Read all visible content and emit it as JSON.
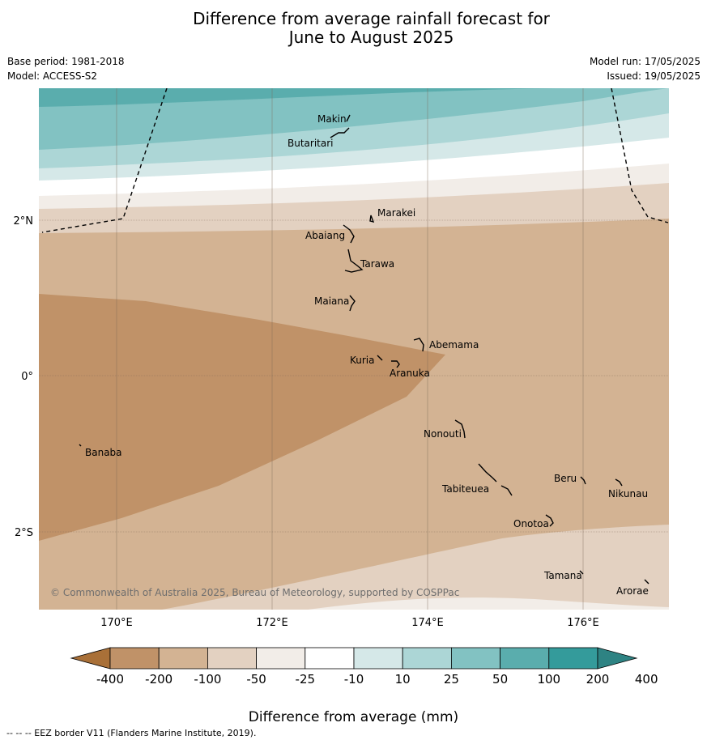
{
  "title_line1": "Difference from average rainfall forecast for",
  "title_line2": "June to August 2025",
  "meta": {
    "base_period": "Base period: 1981-2018",
    "model": "Model: ACCESS-S2",
    "model_run": "Model run: 17/05/2025",
    "issued": "Issued: 19/05/2025"
  },
  "copyright": "© Commonwealth of Australia 2025, Bureau of Meteorology, supported by COSPPac",
  "axes": {
    "lon_ticks": [
      "170°E",
      "172°E",
      "174°E",
      "176°E"
    ],
    "lat_ticks": [
      "2°N",
      "0°",
      "2°S"
    ]
  },
  "places": [
    {
      "name": "Makin"
    },
    {
      "name": "Butaritari"
    },
    {
      "name": "Marakei"
    },
    {
      "name": "Abaiang"
    },
    {
      "name": "Tarawa"
    },
    {
      "name": "Maiana"
    },
    {
      "name": "Abemama"
    },
    {
      "name": "Kuria"
    },
    {
      "name": "Aranuka"
    },
    {
      "name": "Banaba"
    },
    {
      "name": "Nonouti"
    },
    {
      "name": "Beru"
    },
    {
      "name": "Nikunau"
    },
    {
      "name": "Tabiteuea"
    },
    {
      "name": "Onotoa"
    },
    {
      "name": "Tamana"
    },
    {
      "name": "Arorae"
    }
  ],
  "colorbar": {
    "ticks": [
      "-400",
      "-200",
      "-100",
      "-50",
      "-25",
      "-10",
      "10",
      "25",
      "50",
      "100",
      "200",
      "400"
    ],
    "colors": [
      "#a97038",
      "#c09268",
      "#d3b393",
      "#e3d1c1",
      "#f2ede8",
      "#ffffff",
      "#d5e8e8",
      "#acd6d6",
      "#82c2c2",
      "#5aadad",
      "#349b9b",
      "#2e8383"
    ],
    "label": "Difference from average (mm)"
  },
  "footnote": "--  --  -- EEZ border V11 (Flanders Marine Institute, 2019)."
}
